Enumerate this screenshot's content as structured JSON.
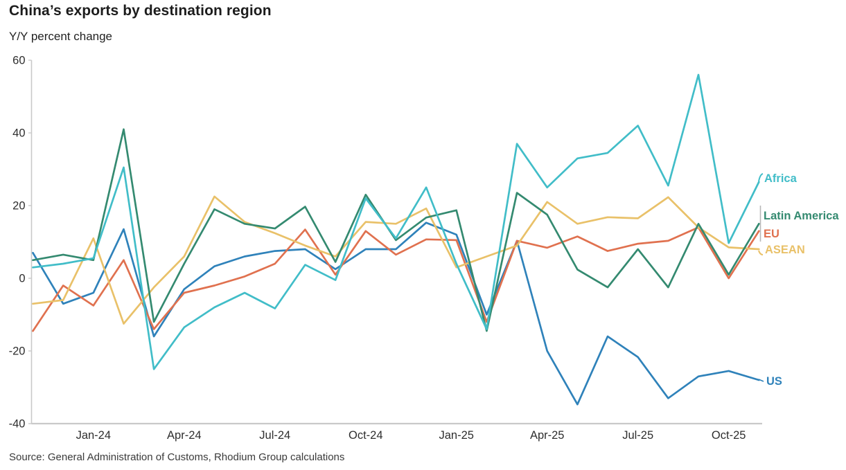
{
  "title": "China’s exports by destination region",
  "subtitle": "Y/Y percent change",
  "source": "Source: General Administration of Customs, Rhodium Group calculations",
  "chart_data": {
    "type": "line",
    "x": [
      "Nov-23",
      "Dec-23",
      "Jan-24",
      "Feb-24",
      "Mar-24",
      "Apr-24",
      "May-24",
      "Jun-24",
      "Jul-24",
      "Aug-24",
      "Sep-24",
      "Oct-24",
      "Nov-24",
      "Dec-24",
      "Jan-25",
      "Feb-25",
      "Mar-25",
      "Apr-25",
      "May-25",
      "Jun-25",
      "Jul-25",
      "Aug-25",
      "Sep-25",
      "Oct-25",
      "Nov-25"
    ],
    "x_tick_labels": [
      "Jan-24",
      "Apr-24",
      "Jul-24",
      "Oct-24",
      "Jan-25",
      "Apr-25",
      "Jul-25",
      "Oct-25"
    ],
    "y_ticks": [
      60,
      40,
      20,
      0,
      -20,
      -40
    ],
    "ylim": [
      -40,
      60
    ],
    "grid": false,
    "legend_position": "direct-right-labels",
    "axis_color": "#c9c9c9",
    "tick_label_color": "#2e2e2e",
    "series": [
      {
        "name": "US",
        "color": "#2f82ba",
        "values": [
          7,
          -7,
          -4,
          13.5,
          -16,
          -3,
          3.3,
          6,
          7.5,
          8,
          2.5,
          8,
          8,
          15.3,
          12,
          -10,
          10.3,
          -20,
          -34.7,
          -16,
          -21.7,
          -33,
          -27,
          -25.5,
          -28
        ]
      },
      {
        "name": "EU",
        "color": "#e0714f",
        "values": [
          -14.5,
          -2,
          -7.5,
          5,
          -14,
          -4,
          -2,
          0.5,
          4,
          13.4,
          1,
          13,
          6.5,
          10.7,
          10.5,
          -12,
          10.3,
          8.4,
          11.5,
          7.5,
          9.5,
          10.3,
          14,
          0,
          13
        ]
      },
      {
        "name": "ASEAN",
        "color": "#e9c169",
        "values": [
          -7,
          -6,
          11,
          -12.5,
          -2.5,
          6,
          22.5,
          15.5,
          12.4,
          9,
          6,
          15.5,
          15,
          19.2,
          3,
          6,
          9,
          21,
          15,
          16.8,
          16.5,
          22.3,
          14,
          8.5,
          8
        ]
      },
      {
        "name": "Latin America",
        "color": "#348a70",
        "values": [
          5,
          6.5,
          5,
          41,
          -12,
          4,
          19,
          15,
          13.7,
          19.7,
          4.5,
          23,
          10.5,
          16.7,
          18.7,
          -14.5,
          23.5,
          17.5,
          2.4,
          -2.5,
          8,
          -2.5,
          15,
          1,
          15
        ]
      },
      {
        "name": "Africa",
        "color": "#41bdc8",
        "values": [
          3,
          4,
          5.5,
          30.5,
          -25,
          -13.5,
          -8,
          -4,
          -8.3,
          3.7,
          -0.5,
          22,
          11,
          25,
          4,
          -14,
          37,
          25,
          33,
          34.5,
          42,
          25.5,
          56,
          9.7,
          26.5
        ]
      }
    ]
  }
}
